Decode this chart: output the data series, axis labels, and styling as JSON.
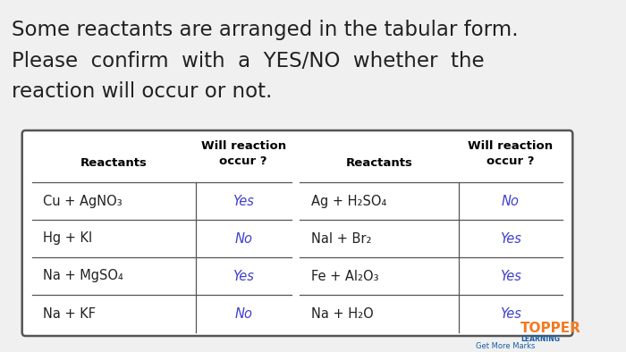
{
  "title_line1": "Some reactants are arranged in the tabular form.",
  "title_line2": "Please  confirm  with  a  YES/NO  whether  the",
  "title_line3": "reaction will occur or not.",
  "bg_color": "#f0f0f0",
  "table_bg": "#ffffff",
  "border_color": "#555555",
  "header_color": "#000000",
  "answer_color": "#4040cc",
  "text_color": "#222222",
  "left_rows": [
    [
      "Cu + AgNO₃",
      "Yes"
    ],
    [
      "Hg + KI",
      "No"
    ],
    [
      "Na + MgSO₄",
      "Yes"
    ],
    [
      "Na + KF",
      "No"
    ]
  ],
  "right_rows": [
    [
      "Ag + H₂SO₄",
      "No"
    ],
    [
      "NaI + Br₂",
      "Yes"
    ],
    [
      "Fe + Al₂O₃",
      "Yes"
    ],
    [
      "Na + H₂O",
      "Yes"
    ]
  ],
  "topper_orange": "#f47920",
  "topper_blue": "#1a5fa8"
}
